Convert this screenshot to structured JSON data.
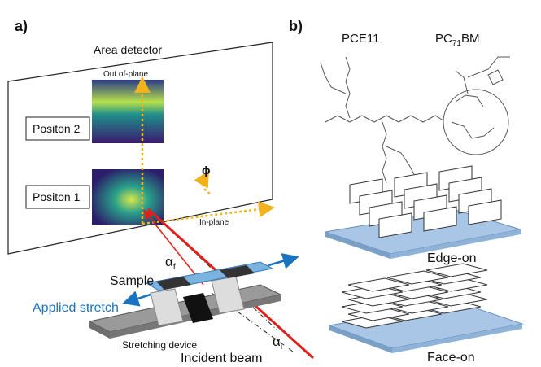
{
  "panel_a": {
    "label": "a)",
    "detector": "Area detector",
    "out_of_plane": "Out of-plane",
    "position_2": "Positon 2",
    "position_1": "Positon 1",
    "phi": "ϕ",
    "in_plane": "In-plane",
    "alpha_f": {
      "symbol": "α",
      "subscript": "f"
    },
    "sample": "Sample",
    "applied_stretch": "Applied stretch",
    "stretching_device": "Stretching device",
    "incident_beam": "Incident beam",
    "alpha_i": {
      "symbol": "α",
      "subscript": "i"
    }
  },
  "panel_b": {
    "label": "b)",
    "polymer": "PCE11",
    "fullerene": {
      "prefix": "PC",
      "subscript": "71",
      "suffix": "BM"
    },
    "edge_on": "Edge-on",
    "face_on": "Face-on"
  }
}
